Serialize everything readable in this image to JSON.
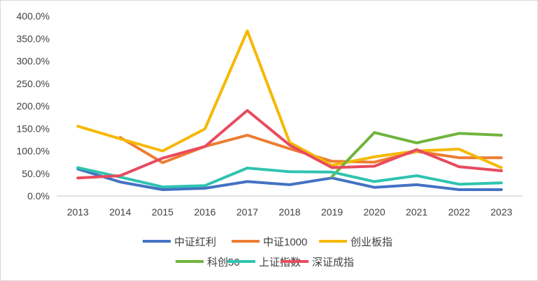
{
  "chart_data": {
    "type": "line",
    "title": "",
    "xlabel": "",
    "ylabel": "",
    "categories": [
      "2013",
      "2014",
      "2015",
      "2016",
      "2017",
      "2018",
      "2019",
      "2020",
      "2021",
      "2022",
      "2023"
    ],
    "ylim": [
      0,
      400
    ],
    "yticks": [
      "0.0%",
      "50.0%",
      "100.0%",
      "150.0%",
      "200.0%",
      "250.0%",
      "300.0%",
      "350.0%",
      "400.0%"
    ],
    "grid": false,
    "legend_placement": "bottom",
    "series": [
      {
        "name": "中证红利",
        "color": "#4472C4",
        "values": [
          60,
          31,
          14,
          17,
          32,
          25,
          40,
          19,
          25,
          14,
          14
        ]
      },
      {
        "name": "中证1000",
        "color": "#ED7D31",
        "values": [
          null,
          130,
          74,
          110,
          135,
          105,
          77,
          75,
          99,
          85,
          85
        ]
      },
      {
        "name": "创业板指",
        "color": "#F5B800",
        "values": [
          155,
          127,
          100,
          149,
          367,
          119,
          68,
          87,
          100,
          104,
          63
        ]
      },
      {
        "name": "科创50",
        "color": "#70B43C",
        "values": [
          null,
          null,
          null,
          null,
          null,
          null,
          43,
          141,
          118,
          139,
          135
        ]
      },
      {
        "name": "上证指数",
        "color": "#2EC4B0",
        "values": [
          63,
          42,
          20,
          23,
          62,
          54,
          53,
          32,
          45,
          26,
          29
        ]
      },
      {
        "name": "深证成指",
        "color": "#E84B5F",
        "values": [
          40,
          45,
          84,
          110,
          190,
          113,
          63,
          66,
          103,
          65,
          56
        ]
      }
    ]
  }
}
